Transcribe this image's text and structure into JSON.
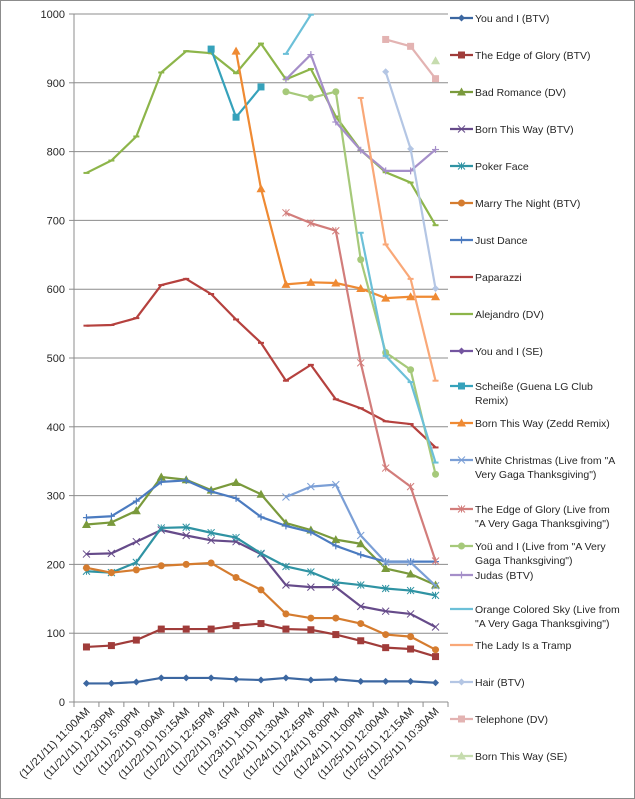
{
  "chart_data": {
    "type": "line",
    "title": "",
    "xlabel": "",
    "ylabel": "",
    "ylim": [
      0,
      1000
    ],
    "yticks": [
      0,
      100,
      200,
      300,
      400,
      500,
      600,
      700,
      800,
      900,
      1000
    ],
    "grid": true,
    "legend_position": "right",
    "categories": [
      "(11/21/11) 11:00AM",
      "(11/21/11) 12:30PM",
      "(11/21/11) 5:00PM",
      "(11/22/11) 9:00AM",
      "(11/22/11) 10:15AM",
      "(11/22/11) 12:45PM",
      "(11/22/11) 9:45PM",
      "(11/23/11) 1:00PM",
      "(11/24/11) 11:30AM",
      "(11/24/11) 12:45PM",
      "(11/24/11) 8:00PM",
      "(11/24/11) 11:00PM",
      "(11/25/11) 12:00AM",
      "(11/25/11) 12:15AM",
      "(11/25/11) 10:30AM"
    ],
    "series": [
      {
        "name": "You and I (BTV)",
        "legend_lines": [
          "You and I (BTV)"
        ],
        "color": "#3c67a1",
        "marker": "diamond",
        "values": [
          27,
          27,
          29,
          35,
          35,
          35,
          33,
          32,
          35,
          32,
          33,
          30,
          30,
          30,
          28
        ]
      },
      {
        "name": "The Edge of Glory (BTV)",
        "legend_lines": [
          "The Edge of Glory (BTV)"
        ],
        "color": "#a03c3a",
        "marker": "square",
        "values": [
          80,
          82,
          90,
          106,
          106,
          106,
          111,
          114,
          106,
          105,
          98,
          89,
          79,
          77,
          66
        ]
      },
      {
        "name": "Bad Romance (DV)",
        "legend_lines": [
          "Bad Romance (DV)"
        ],
        "color": "#7a9a3c",
        "marker": "triangle",
        "values": [
          258,
          261,
          278,
          327,
          323,
          308,
          319,
          302,
          260,
          250,
          236,
          230,
          194,
          186,
          170
        ]
      },
      {
        "name": "Born This Way (BTV)",
        "legend_lines": [
          "Born This Way (BTV)"
        ],
        "color": "#664b8a",
        "marker": "x",
        "values": [
          215,
          216,
          233,
          250,
          242,
          235,
          233,
          215,
          170,
          167,
          167,
          139,
          132,
          128,
          109
        ]
      },
      {
        "name": "Poker Face",
        "legend_lines": [
          "Poker Face"
        ],
        "color": "#2f93a3",
        "marker": "star",
        "values": [
          190,
          188,
          203,
          253,
          254,
          246,
          239,
          216,
          197,
          189,
          174,
          170,
          165,
          162,
          155
        ]
      },
      {
        "name": "Marry The Night (BTV)",
        "legend_lines": [
          "Marry The Night (BTV)"
        ],
        "color": "#d57c2f",
        "marker": "circle",
        "values": [
          195,
          188,
          192,
          198,
          200,
          202,
          181,
          163,
          128,
          122,
          122,
          114,
          98,
          95,
          76
        ]
      },
      {
        "name": "Just Dance",
        "legend_lines": [
          "Just Dance"
        ],
        "color": "#4b7bc0",
        "marker": "plus",
        "values": [
          268,
          270,
          292,
          320,
          322,
          306,
          296,
          269,
          256,
          247,
          227,
          214,
          204,
          204,
          204
        ]
      },
      {
        "name": "Paparazzi",
        "legend_lines": [
          "Paparazzi"
        ],
        "color": "#b5413e",
        "marker": "dash",
        "values": [
          547,
          548,
          558,
          606,
          615,
          593,
          556,
          522,
          467,
          490,
          440,
          427,
          408,
          404,
          370
        ]
      },
      {
        "name": "Alejandro (DV)",
        "legend_lines": [
          "Alejandro (DV)"
        ],
        "color": "#8db54a",
        "marker": "dash",
        "values": [
          769,
          787,
          822,
          915,
          946,
          943,
          914,
          957,
          905,
          920,
          851,
          802,
          770,
          755,
          693
        ]
      },
      {
        "name": "You and I (SE)",
        "legend_lines": [
          "You and I (SE)"
        ],
        "color": "#7455a0",
        "marker": "diamond",
        "values": [
          null,
          null,
          null,
          null,
          null,
          null,
          null,
          null,
          null,
          null,
          null,
          null,
          null,
          null,
          null
        ]
      },
      {
        "name": "Scheiße (Guena LG Club Remix)",
        "legend_lines": [
          "Scheiße (Guena LG Club",
          "Remix)"
        ],
        "color": "#36a2bb",
        "marker": "square",
        "values": [
          null,
          null,
          null,
          null,
          null,
          949,
          850,
          894,
          null,
          null,
          null,
          null,
          null,
          null,
          null
        ]
      },
      {
        "name": "Born This Way (Zedd Remix)",
        "legend_lines": [
          "Born This Way (Zedd Remix)"
        ],
        "color": "#ef8a33",
        "marker": "triangle",
        "values": [
          null,
          null,
          null,
          null,
          null,
          null,
          946,
          746,
          607,
          610,
          609,
          601,
          587,
          589,
          589
        ]
      },
      {
        "name": "White Christmas (Live from \"A Very Gaga Thanksgiving\")",
        "legend_lines": [
          "White Christmas (Live from \"A",
          "Very Gaga Thanksgiving\")"
        ],
        "color": "#7b9fd6",
        "marker": "x",
        "values": [
          null,
          null,
          null,
          null,
          null,
          null,
          null,
          null,
          298,
          313,
          316,
          242,
          203,
          203,
          169
        ]
      },
      {
        "name": "The Edge of Glory (Live from \"A Very Gaga Thanksgiving\")",
        "legend_lines": [
          "The Edge of Glory (Live from",
          "\"A Very Gaga Thanksgiving\")"
        ],
        "color": "#d27d7b",
        "marker": "star",
        "values": [
          null,
          null,
          null,
          null,
          null,
          null,
          null,
          null,
          711,
          696,
          685,
          493,
          340,
          313,
          205
        ]
      },
      {
        "name": "Yoü and I (Live from \"A Very Gaga Thanksgiving\")",
        "legend_lines": [
          "Yoü and I (Live from \"A Very",
          "Gaga Thanksgiving\")"
        ],
        "color": "#a6c97a",
        "marker": "circle",
        "values": [
          null,
          null,
          null,
          null,
          null,
          null,
          null,
          null,
          887,
          878,
          887,
          643,
          508,
          483,
          331
        ]
      },
      {
        "name": "Judas (BTV)",
        "legend_lines": [
          "Judas (BTV)"
        ],
        "color": "#a58fc9",
        "marker": "plus",
        "values": [
          null,
          null,
          null,
          null,
          null,
          null,
          null,
          null,
          905,
          941,
          843,
          802,
          772,
          772,
          803
        ]
      },
      {
        "name": "Orange Colored Sky (Live from \"A Very Gaga Thanksgiving\")",
        "legend_lines": [
          "Orange Colored Sky (Live from",
          "\"A Very Gaga Thanksgiving\")"
        ],
        "color": "#6cc0d8",
        "marker": "dash",
        "values": [
          null,
          null,
          null,
          null,
          null,
          null,
          null,
          null,
          942,
          999,
          null,
          682,
          503,
          465,
          348
        ]
      },
      {
        "name": "The Lady Is a Tramp",
        "legend_lines": [
          "The Lady Is a Tramp"
        ],
        "color": "#f9a878",
        "marker": "dash",
        "values": [
          null,
          null,
          null,
          null,
          null,
          null,
          null,
          null,
          null,
          null,
          null,
          878,
          665,
          615,
          467
        ]
      },
      {
        "name": "Hair (BTV)",
        "legend_lines": [
          "Hair (BTV)"
        ],
        "color": "#b4c6e4",
        "marker": "diamond",
        "values": [
          null,
          null,
          null,
          null,
          null,
          null,
          null,
          null,
          null,
          null,
          null,
          null,
          916,
          804,
          601
        ]
      },
      {
        "name": "Telephone (DV)",
        "legend_lines": [
          "Telephone (DV)"
        ],
        "color": "#e3b3b2",
        "marker": "square",
        "values": [
          null,
          null,
          null,
          null,
          null,
          null,
          null,
          null,
          null,
          null,
          null,
          null,
          963,
          953,
          906
        ]
      },
      {
        "name": "Born This Way (SE)",
        "legend_lines": [
          "Born This Way (SE)"
        ],
        "color": "#c6dcae",
        "marker": "triangle",
        "values": [
          null,
          null,
          null,
          null,
          null,
          null,
          null,
          null,
          null,
          null,
          null,
          null,
          null,
          null,
          932
        ]
      }
    ]
  }
}
